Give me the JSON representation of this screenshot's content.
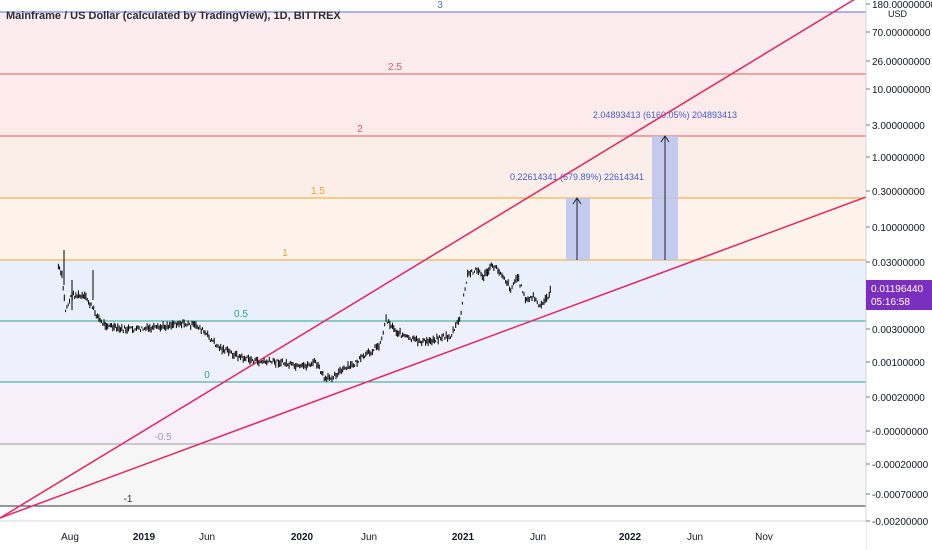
{
  "header": {
    "title": "Mainframe / US Dollar (calculated by TradingView), 1D, BITTREX"
  },
  "currency": "USD",
  "price_badge": {
    "price": "0.01196440",
    "countdown": "05:16:58",
    "color": "#7b2fbf"
  },
  "colors": {
    "fib_3": "#5a6fd6",
    "fib_2_5": "#e05a5a",
    "fib_2": "#e05a5a",
    "fib_1_5": "#f5a32a",
    "fib_1": "#f5a32a",
    "fib_0_5": "#2aa38f",
    "fib_0": "#2aa38f",
    "fib_neg_0_5": "#9e9e9e",
    "fib_neg_1": "#333333",
    "trendline": "#e0306b",
    "candles": "#000000",
    "measure_box": "#b9c3ef",
    "measure_text": "#3f5ecf"
  },
  "chart_data": {
    "type": "line",
    "title": "Mainframe / US Dollar (calculated by TradingView), 1D, BITTREX",
    "y_scale": "log",
    "y_unit": "USD",
    "y_tick_labels": [
      "180.00000000",
      "70.00000000",
      "26.00000000",
      "10.00000000",
      "3.00000000",
      "1.00000000",
      "0.30000000",
      "0.10000000",
      "0.03000000",
      "0.01000000",
      "0.00300000",
      "0.00100000",
      "0.00020000",
      "-0.00000000",
      "-0.00020000",
      "-0.00070000",
      "-0.00200000"
    ],
    "x_tick_labels": [
      "Aug",
      "2019",
      "Jun",
      "2020",
      "Jun",
      "2021",
      "Jun",
      "2022",
      "Jun",
      "Nov"
    ],
    "fib_levels": [
      {
        "label": "3",
        "price": 163.0
      },
      {
        "label": "2.5",
        "price": 23.0
      },
      {
        "label": "2",
        "price": 2.1
      },
      {
        "label": "1.5",
        "price": 0.26
      },
      {
        "label": "1",
        "price": 0.031
      },
      {
        "label": "0.5",
        "price": 0.0042
      },
      {
        "label": "0",
        "price": 0.00057
      },
      {
        "label": "-0.5",
        "price": -1e-05
      },
      {
        "label": "-1",
        "price": -0.0009
      }
    ],
    "measurements": [
      {
        "text": "0.22614341 (679.89%) 22614341",
        "from": 0.031,
        "to": 0.26
      },
      {
        "text": "2.04893413 (6160.05%) 204893413",
        "from": 0.031,
        "to": 2.1
      }
    ],
    "series": [
      {
        "x": [
          "2018-07-20",
          "2018-07-28",
          "2018-08-05",
          "2018-08-20",
          "2018-09-20",
          "2018-10-25",
          "2018-12-01",
          "2019-01-15",
          "2019-03-01",
          "2019-04-15",
          "2019-06-01",
          "2019-07-15",
          "2019-09-01",
          "2019-10-15",
          "2019-12-01",
          "2020-01-15",
          "2020-02-20",
          "2020-03-13",
          "2020-04-15",
          "2020-05-15",
          "2020-06-15",
          "2020-07-15",
          "2020-07-28",
          "2020-08-20",
          "2020-09-20",
          "2020-10-25",
          "2020-12-01",
          "2020-12-20",
          "2021-01-10",
          "2021-01-28",
          "2021-02-15",
          "2021-03-05",
          "2021-03-25",
          "2021-04-15",
          "2021-05-05",
          "2021-05-20",
          "2021-06-10",
          "2021-06-25",
          "2021-07-10",
          "2021-07-28",
          "2021-08-05"
        ],
        "y": [
          0.025,
          0.018,
          0.006,
          0.01,
          0.009,
          0.004,
          0.0032,
          0.0032,
          0.0033,
          0.004,
          0.0035,
          0.0018,
          0.0013,
          0.0011,
          0.0011,
          0.0009,
          0.0011,
          0.0006,
          0.0008,
          0.001,
          0.0014,
          0.002,
          0.0045,
          0.003,
          0.0023,
          0.0021,
          0.0025,
          0.0025,
          0.0045,
          0.019,
          0.023,
          0.018,
          0.026,
          0.02,
          0.012,
          0.018,
          0.008,
          0.0095,
          0.0065,
          0.0095,
          0.0119
        ]
      }
    ]
  }
}
